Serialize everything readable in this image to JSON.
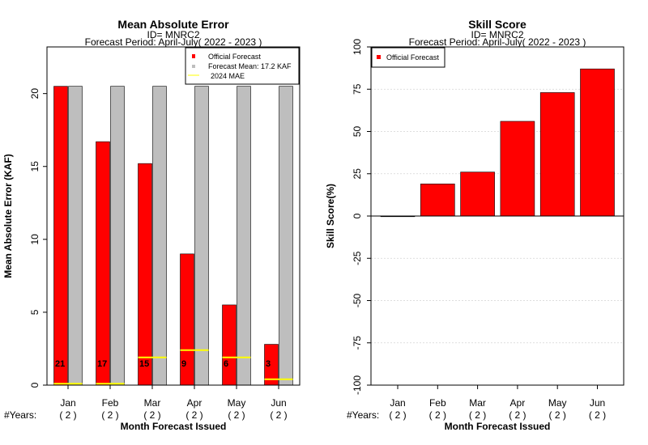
{
  "colors": {
    "forecast": "#ff0000",
    "mean": "#bebebe",
    "mae_line": "#ffff00",
    "grid": "#d3d3d3"
  },
  "years_row_label": "#Years:",
  "chart_data": [
    {
      "type": "bar",
      "title": "Mean Absolute Error",
      "subtitle_1": "ID= MNRC2",
      "subtitle_2": "Forecast Period: April-July( 2022 - 2023 )",
      "xlabel": "Month Forecast Issued",
      "ylabel": "Mean Absolute Error (KAF)",
      "ylim": [
        0,
        23.2
      ],
      "yticks": [
        0,
        5,
        10,
        15,
        20
      ],
      "categories": [
        "Jan",
        "Feb",
        "Mar",
        "Apr",
        "May",
        "Jun"
      ],
      "years": [
        "( 2 )",
        "( 2 )",
        "( 2 )",
        "( 2 )",
        "( 2 )",
        "( 2 )"
      ],
      "series": [
        {
          "name": "Official Forecast",
          "values": [
            20.5,
            16.7,
            15.2,
            9.0,
            5.5,
            2.8
          ]
        },
        {
          "name": "Forecast Mean: 17.2 KAF",
          "values": [
            20.5,
            20.5,
            20.5,
            20.5,
            20.5,
            20.5
          ]
        }
      ],
      "mae_2024": {
        "name": "2024  MAE",
        "values": [
          0.1,
          0.1,
          1.9,
          2.4,
          1.9,
          0.4
        ]
      },
      "bar_labels": [
        "21",
        "17",
        "15",
        "9",
        "6",
        "3"
      ],
      "legend": [
        "Official Forecast",
        "Forecast Mean: 17.2 KAF",
        "2024  MAE"
      ],
      "legend_position": "top-right"
    },
    {
      "type": "bar",
      "title": "Skill Score",
      "subtitle_1": "ID= MNRC2",
      "subtitle_2": "Forecast Period: April-July( 2022 - 2023 )",
      "xlabel": "Month Forecast Issued",
      "ylabel": "Skill Score(%)",
      "ylim": [
        -100,
        100
      ],
      "yticks": [
        -100,
        -75,
        -50,
        -25,
        0,
        25,
        50,
        75,
        100
      ],
      "grid": true,
      "categories": [
        "Jan",
        "Feb",
        "Mar",
        "Apr",
        "May",
        "Jun"
      ],
      "years": [
        "( 2 )",
        "( 2 )",
        "( 2 )",
        "( 2 )",
        "( 2 )",
        "( 2 )"
      ],
      "series": [
        {
          "name": "Official Forecast",
          "values": [
            0,
            19,
            26,
            56,
            73,
            87
          ]
        }
      ],
      "legend": [
        "Official Forecast"
      ],
      "legend_position": "top-left"
    }
  ]
}
